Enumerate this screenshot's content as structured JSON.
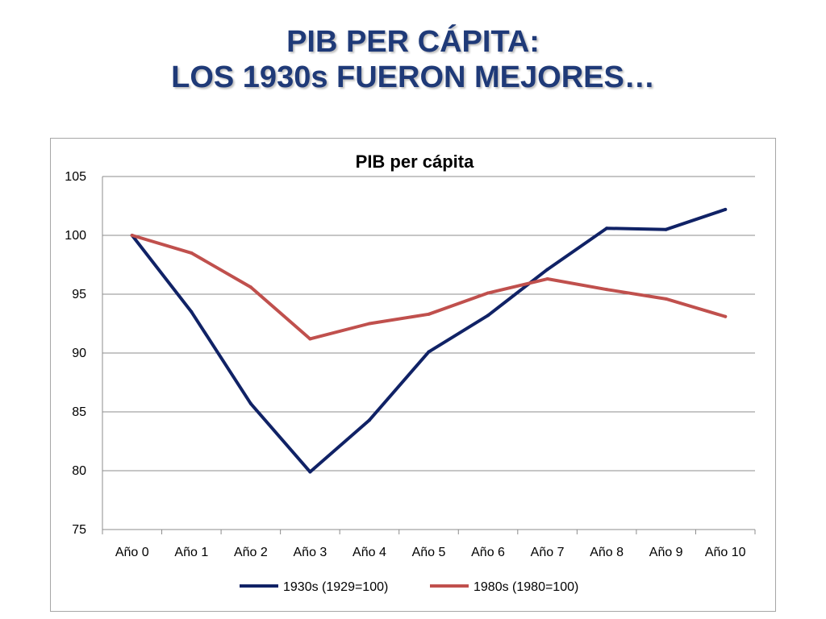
{
  "slide": {
    "title_line1": "PIB PER CÁPITA:",
    "title_line2": "LOS 1930s FUERON MEJORES…"
  },
  "colors": {
    "title": "#1f3a78",
    "series_1930s": "#102266",
    "series_1980s": "#c0504d",
    "grid": "#8c8c8c"
  },
  "chart_data": {
    "type": "line",
    "title": "PIB per cápita",
    "xlabel": "",
    "ylabel": "",
    "categories": [
      "Año 0",
      "Año 1",
      "Año 2",
      "Año 3",
      "Año 4",
      "Año 5",
      "Año 6",
      "Año 7",
      "Año 8",
      "Año 9",
      "Año 10"
    ],
    "ylim": [
      75,
      105
    ],
    "yticks": [
      75,
      80,
      85,
      90,
      95,
      100,
      105
    ],
    "grid": true,
    "legend_position": "bottom",
    "series": [
      {
        "name": "1930s (1929=100)",
        "color": "#102266",
        "values": [
          100,
          93.5,
          85.7,
          79.9,
          84.3,
          90.1,
          93.2,
          97.1,
          100.6,
          100.5,
          102.2
        ]
      },
      {
        "name": "1980s (1980=100)",
        "color": "#c0504d",
        "values": [
          100,
          98.5,
          95.6,
          91.2,
          92.5,
          93.3,
          95.1,
          96.3,
          95.4,
          94.6,
          93.1
        ]
      }
    ]
  }
}
